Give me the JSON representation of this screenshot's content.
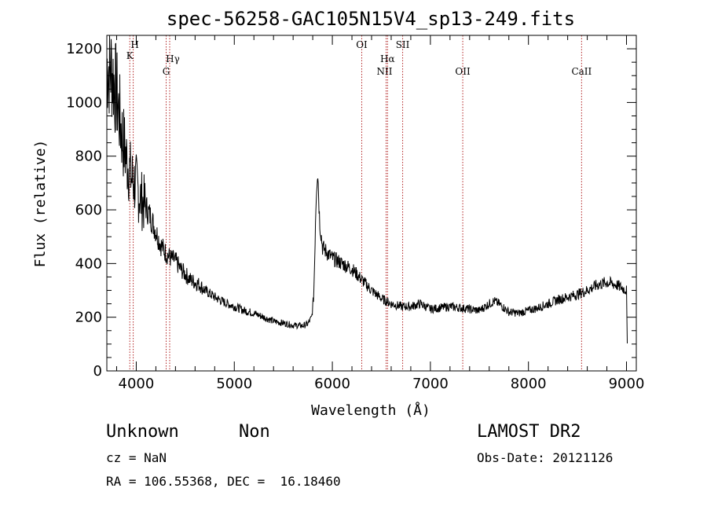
{
  "chart_data": {
    "type": "line",
    "title": "spec-56258-GAC105N15V4_sp13-249.fits",
    "xlabel": "Wavelength (Å)",
    "ylabel": "Flux (relative)",
    "xlim": [
      3700,
      9100
    ],
    "ylim": [
      0,
      1250
    ],
    "xticks": [
      4000,
      5000,
      6000,
      7000,
      8000,
      9000
    ],
    "yticks": [
      0,
      200,
      400,
      600,
      800,
      1000,
      1200
    ],
    "line_color": "#000000",
    "marker_color": "#b22222",
    "series": [
      {
        "x": [
          3700,
          3750,
          3800,
          3850,
          3900,
          3950,
          4000,
          4050,
          4100,
          4150,
          4200,
          4250,
          4300,
          4350,
          4400,
          4450,
          4500,
          4550,
          4600,
          4650,
          4700,
          4800,
          4900,
          5000,
          5100,
          5200,
          5300,
          5400,
          5500,
          5600,
          5700,
          5750,
          5790,
          5810,
          5820,
          5830,
          5840,
          5850,
          5870,
          5900,
          6000,
          6100,
          6200,
          6300,
          6400,
          6500,
          6600,
          6700,
          6800,
          6900,
          7000,
          7100,
          7200,
          7300,
          7400,
          7500,
          7600,
          7650,
          7700,
          7800,
          7900,
          8000,
          8100,
          8200,
          8300,
          8400,
          8500,
          8600,
          8700,
          8800,
          8900,
          9000,
          9010
        ],
        "y": [
          1140,
          1120,
          1030,
          890,
          790,
          720,
          690,
          640,
          610,
          570,
          520,
          470,
          440,
          420,
          410,
          380,
          360,
          340,
          330,
          320,
          300,
          275,
          255,
          240,
          225,
          215,
          200,
          185,
          178,
          170,
          168,
          175,
          200,
          280,
          420,
          600,
          700,
          760,
          560,
          460,
          420,
          400,
          380,
          340,
          300,
          270,
          250,
          240,
          240,
          250,
          230,
          235,
          240,
          235,
          230,
          225,
          250,
          260,
          250,
          220,
          215,
          225,
          235,
          250,
          265,
          275,
          285,
          300,
          320,
          330,
          320,
          300,
          45
        ]
      }
    ],
    "reference_lines": [
      {
        "label": "K",
        "x": 3934
      },
      {
        "label": "H",
        "x": 3969
      },
      {
        "label": "G",
        "x": 4305
      },
      {
        "label": "Hγ",
        "x": 4341
      },
      {
        "label": "OI",
        "x": 6300
      },
      {
        "label": "NII",
        "x": 6548
      },
      {
        "label": "Hα",
        "x": 6563
      },
      {
        "label": "SII",
        "x": 6717
      },
      {
        "label": "OII",
        "x": 7330
      },
      {
        "label": "CaII",
        "x": 8542
      }
    ]
  },
  "info": {
    "class": "Unknown",
    "subclass": "Non",
    "survey": "LAMOST DR2",
    "cz": "cz = NaN",
    "obs_date": "Obs-Date: 20121126",
    "coords": "RA = 106.55368, DEC =  16.18460"
  }
}
